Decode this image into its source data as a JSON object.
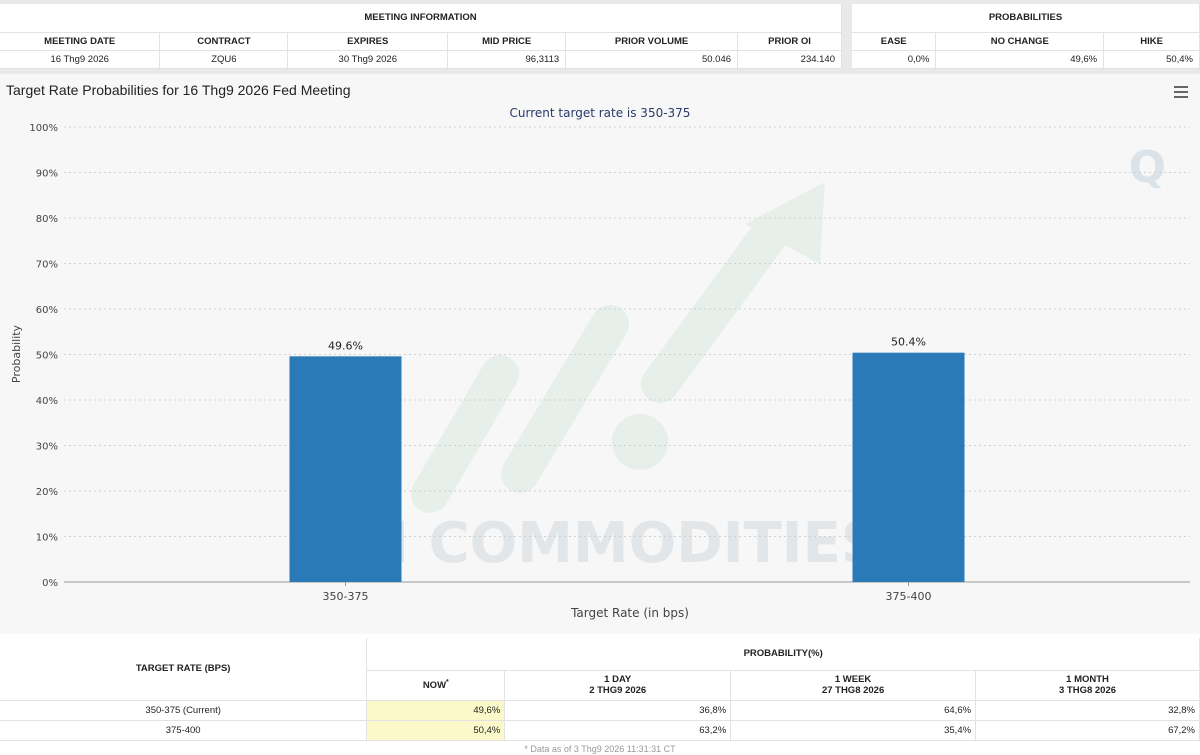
{
  "meeting": {
    "group_title": "MEETING INFORMATION",
    "headers": [
      "MEETING DATE",
      "CONTRACT",
      "EXPIRES",
      "MID PRICE",
      "PRIOR VOLUME",
      "PRIOR OI"
    ],
    "row": [
      "16 Thg9 2026",
      "ZQU6",
      "30 Thg9 2026",
      "96,3113",
      "50.046",
      "234.140"
    ]
  },
  "probabilities": {
    "group_title": "PROBABILITIES",
    "headers": [
      "EASE",
      "NO CHANGE",
      "HIKE"
    ],
    "row": [
      "0,0%",
      "49,6%",
      "50,4%"
    ]
  },
  "chart_data": {
    "type": "bar",
    "title": "Target Rate Probabilities for 16 Thg9 2026 Fed Meeting",
    "subtitle": "Current target rate is 350-375",
    "xlabel": "Target Rate (in bps)",
    "ylabel": "Probability",
    "categories": [
      "350-375",
      "375-400"
    ],
    "values": [
      49.6,
      50.4
    ],
    "data_labels": [
      "49.6%",
      "50.4%"
    ],
    "ylim": [
      0,
      100
    ],
    "yticks": [
      "0%",
      "10%",
      "20%",
      "30%",
      "40%",
      "50%",
      "60%",
      "70%",
      "80%",
      "90%",
      "100%"
    ],
    "bar_color": "#2a7ab8",
    "grid": true,
    "watermark": "VN COMMODITIES",
    "logo_text": "Q"
  },
  "bottom_table": {
    "target_header": "TARGET RATE (BPS)",
    "prob_header": "PROBABILITY(%)",
    "col_now": "NOW",
    "col_now_sup": "*",
    "cols": [
      {
        "line1": "1 DAY",
        "line2": "2 THG9 2026"
      },
      {
        "line1": "1 WEEK",
        "line2": "27 THG8 2026"
      },
      {
        "line1": "1 MONTH",
        "line2": "3 THG8 2026"
      }
    ],
    "rows": [
      {
        "rate": "350-375 (Current)",
        "now": "49,6%",
        "d1": "36,8%",
        "w1": "64,6%",
        "m1": "32,8%"
      },
      {
        "rate": "375-400",
        "now": "50,4%",
        "d1": "63,2%",
        "w1": "35,4%",
        "m1": "67,2%"
      }
    ],
    "footnote": "* Data as of 3 Thg9 2026 11:31:31 CT"
  }
}
